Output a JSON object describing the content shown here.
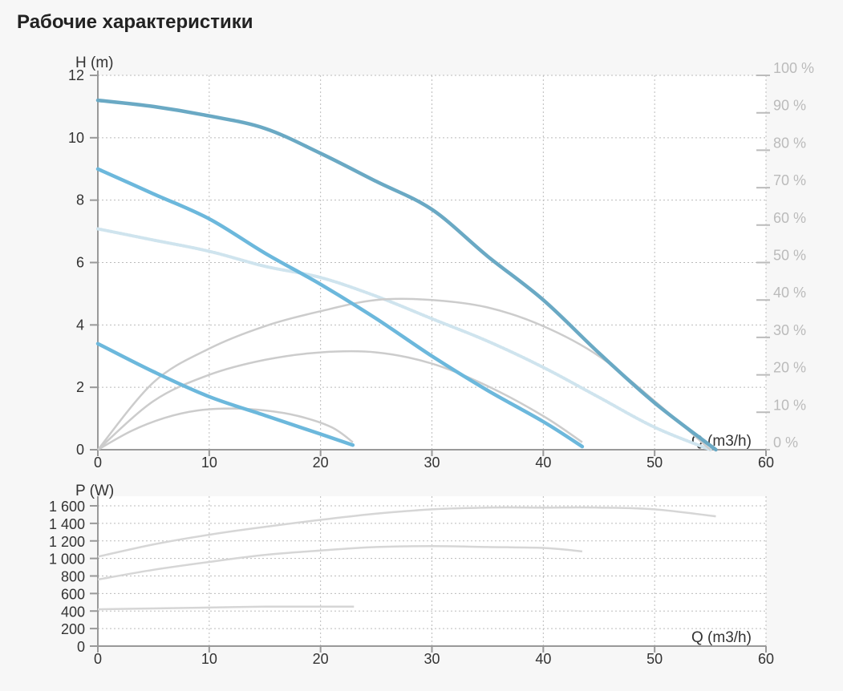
{
  "page_title": "Рабочие характеристики",
  "colors": {
    "head_curve": "#6cb8dc",
    "head_curve_max": "#6aa9c4",
    "efficiency_curve": "#cfe4ee",
    "grey_curve": "#cccccc",
    "power_curve": "#d6d6d6",
    "grid": "#bbbbbb"
  },
  "chart_data": [
    {
      "type": "line",
      "title": "",
      "xlabel": "Q (m3/h)",
      "ylabel": "H (m)",
      "y2label": "",
      "xlim": [
        0,
        60
      ],
      "ylim": [
        0,
        12
      ],
      "y2lim": [
        0,
        100
      ],
      "x_ticks": [
        "0",
        "10",
        "20",
        "30",
        "40",
        "50",
        "60"
      ],
      "y_ticks": [
        "0",
        "2",
        "4",
        "6",
        "8",
        "10",
        "12"
      ],
      "y2_ticks": [
        "0 %",
        "10 %",
        "20 %",
        "30 %",
        "40 %",
        "50 %",
        "60 %",
        "70 %",
        "80 %",
        "90 %",
        "100 %"
      ],
      "grid": true,
      "head_curves": [
        {
          "x": [
            0,
            5,
            10,
            15,
            20,
            25,
            30,
            35,
            40,
            45,
            50,
            55.5
          ],
          "y": [
            11.2,
            11.0,
            10.7,
            10.3,
            9.5,
            8.6,
            7.7,
            6.2,
            4.8,
            3.1,
            1.5,
            0.0
          ]
        },
        {
          "x": [
            0,
            5,
            10,
            15,
            20,
            25,
            30,
            35,
            40,
            43.5
          ],
          "y": [
            9.0,
            8.2,
            7.4,
            6.3,
            5.3,
            4.2,
            3.0,
            1.9,
            0.9,
            0.1
          ]
        },
        {
          "x": [
            0,
            5,
            10,
            15,
            20,
            22.9
          ],
          "y": [
            3.4,
            2.5,
            1.7,
            1.1,
            0.5,
            0.15
          ]
        }
      ],
      "efficiency_curves": [
        {
          "axis": "y2",
          "x": [
            0,
            5,
            10,
            15,
            20,
            25,
            30,
            35,
            40,
            45,
            50,
            55
          ],
          "y": [
            59,
            56,
            53,
            49,
            46,
            41,
            35,
            29,
            22,
            14,
            6,
            0
          ]
        },
        {
          "axis": "y2",
          "x": [
            0,
            5,
            10,
            15,
            20,
            25,
            30,
            35,
            40,
            45,
            50,
            55
          ],
          "y": [
            0,
            18,
            27,
            33,
            37,
            40,
            40,
            38,
            33,
            25,
            13,
            0
          ]
        },
        {
          "axis": "y2",
          "x": [
            0,
            5,
            10,
            15,
            20,
            25,
            30,
            35,
            40,
            43.5
          ],
          "y": [
            0,
            13,
            20,
            24,
            26,
            26,
            23,
            17,
            9,
            2
          ]
        },
        {
          "axis": "y2",
          "x": [
            0,
            3,
            6,
            9,
            12,
            15,
            18,
            21,
            22.9
          ],
          "y": [
            0,
            5,
            8.5,
            10.5,
            11,
            10.5,
            9,
            6,
            2
          ]
        }
      ]
    },
    {
      "type": "line",
      "title": "",
      "xlabel": "Q (m3/h)",
      "ylabel": "P (W)",
      "xlim": [
        0,
        60
      ],
      "ylim": [
        0,
        1600
      ],
      "x_ticks": [
        "0",
        "10",
        "20",
        "30",
        "40",
        "50",
        "60"
      ],
      "y_ticks": [
        "0",
        "200",
        "400",
        "600",
        "800",
        "1 000",
        "1 200",
        "1 400",
        "1 600"
      ],
      "grid": true,
      "power_curves": [
        {
          "x": [
            0,
            5,
            10,
            15,
            20,
            25,
            30,
            35,
            40,
            45,
            50,
            55.5
          ],
          "y": [
            1020,
            1160,
            1270,
            1360,
            1440,
            1510,
            1560,
            1580,
            1580,
            1580,
            1560,
            1480
          ]
        },
        {
          "x": [
            0,
            5,
            10,
            15,
            20,
            25,
            30,
            35,
            40,
            43.5
          ],
          "y": [
            760,
            870,
            960,
            1040,
            1090,
            1130,
            1140,
            1130,
            1120,
            1080
          ]
        },
        {
          "x": [
            0,
            5,
            10,
            15,
            20,
            23
          ],
          "y": [
            420,
            430,
            440,
            450,
            450,
            450
          ]
        }
      ]
    }
  ]
}
